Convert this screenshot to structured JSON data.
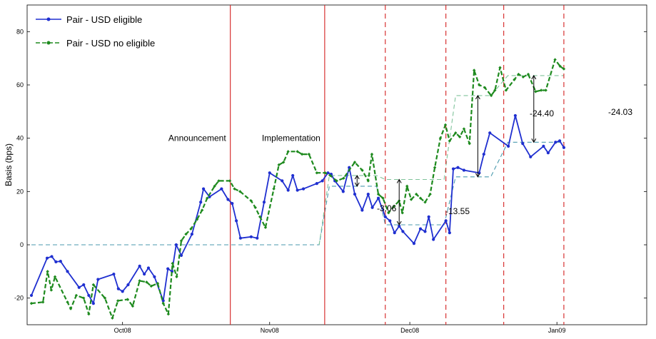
{
  "chart_data": {
    "type": "line",
    "ylabel": "Basis (bps)",
    "xlabel": "",
    "title": "",
    "ylim": [
      -30,
      90
    ],
    "xlim": [
      0,
      129
    ],
    "x_ticks": [
      {
        "x": 19.7,
        "label": "Oct08"
      },
      {
        "x": 51.5,
        "label": "Nov08"
      },
      {
        "x": 81.8,
        "label": "Dec08"
      },
      {
        "x": 113.6,
        "label": "Jan09"
      }
    ],
    "y_ticks": [
      -20,
      0,
      20,
      40,
      60,
      80
    ],
    "legend": {
      "position": "top-left",
      "entries": [
        {
          "name": "Pair - USD eligible",
          "color": "#1f2fd0",
          "style": "solid"
        },
        {
          "name": "Pair - USD no eligible",
          "color": "#1e8a1e",
          "style": "dashed"
        }
      ]
    },
    "series": [
      {
        "name": "Pair - USD eligible",
        "color": "#1f2fd0",
        "style": "solid",
        "points": [
          [
            0,
            -19
          ],
          [
            3.4,
            -5
          ],
          [
            4.4,
            -4.4
          ],
          [
            5.3,
            -6.4
          ],
          [
            6.3,
            -6.2
          ],
          [
            7.8,
            -10
          ],
          [
            10.3,
            -16
          ],
          [
            11.3,
            -15
          ],
          [
            12.4,
            -19
          ],
          [
            13.4,
            -22
          ],
          [
            14.4,
            -13
          ],
          [
            17.8,
            -11
          ],
          [
            18.8,
            -16.5
          ],
          [
            19.7,
            -17.5
          ],
          [
            20.9,
            -15
          ],
          [
            23.4,
            -8
          ],
          [
            24.4,
            -11
          ],
          [
            25.3,
            -8.7
          ],
          [
            26.6,
            -12
          ],
          [
            28.5,
            -21
          ],
          [
            29.5,
            -9
          ],
          [
            30.4,
            -10
          ],
          [
            31.3,
            0
          ],
          [
            32.4,
            -4
          ],
          [
            34.7,
            4
          ],
          [
            36.6,
            16
          ],
          [
            37.2,
            21
          ],
          [
            38.5,
            18
          ],
          [
            41.1,
            21
          ],
          [
            42.5,
            17
          ],
          [
            43.4,
            15.5
          ],
          [
            44.3,
            9
          ],
          [
            45.2,
            2.5
          ],
          [
            47.5,
            3
          ],
          [
            48.8,
            2.5
          ],
          [
            50.3,
            16
          ],
          [
            51.5,
            27
          ],
          [
            54.2,
            24
          ],
          [
            55.5,
            20.5
          ],
          [
            56.5,
            26
          ],
          [
            57.5,
            20.5
          ],
          [
            58.8,
            21
          ],
          [
            61.7,
            23
          ],
          [
            62.9,
            24
          ],
          [
            64.1,
            27
          ],
          [
            64.8,
            26.5
          ],
          [
            65.6,
            24
          ],
          [
            67.4,
            20
          ],
          [
            68.7,
            29
          ],
          [
            69.9,
            19
          ],
          [
            71.5,
            13
          ],
          [
            72.8,
            19
          ],
          [
            73.7,
            14
          ],
          [
            75,
            17.5
          ],
          [
            76.5,
            10.5
          ],
          [
            77.5,
            9
          ],
          [
            78.5,
            4.5
          ],
          [
            79.5,
            7
          ],
          [
            80.3,
            5
          ],
          [
            82.7,
            0.5
          ],
          [
            84.1,
            6
          ],
          [
            85.1,
            5
          ],
          [
            85.9,
            10.5
          ],
          [
            86.9,
            2
          ],
          [
            89.6,
            9
          ],
          [
            90.4,
            4.5
          ],
          [
            91.2,
            28.5
          ],
          [
            92.2,
            29
          ],
          [
            93.5,
            28
          ],
          [
            96.8,
            27
          ],
          [
            97.8,
            34
          ],
          [
            99.1,
            42
          ],
          [
            103.1,
            37
          ],
          [
            104.6,
            48.5
          ],
          [
            106.2,
            38
          ],
          [
            107.9,
            33
          ],
          [
            110.7,
            37
          ],
          [
            111.7,
            34.5
          ],
          [
            113.3,
            38.5
          ],
          [
            114.2,
            39
          ],
          [
            115.1,
            36.5
          ]
        ]
      },
      {
        "name": "Pair - USD no eligible",
        "color": "#1e8a1e",
        "style": "dashed",
        "points": [
          [
            0,
            -22
          ],
          [
            2.5,
            -21.5
          ],
          [
            3.5,
            -10
          ],
          [
            4.3,
            -17
          ],
          [
            5.1,
            -12
          ],
          [
            7.8,
            -21.5
          ],
          [
            8.5,
            -24
          ],
          [
            9.7,
            -19
          ],
          [
            11.3,
            -20
          ],
          [
            12.4,
            -26
          ],
          [
            13.4,
            -15
          ],
          [
            15.9,
            -20
          ],
          [
            17.5,
            -27.5
          ],
          [
            18.7,
            -21
          ],
          [
            20.8,
            -20.5
          ],
          [
            21.9,
            -23
          ],
          [
            23.4,
            -13.5
          ],
          [
            24.9,
            -14
          ],
          [
            25.9,
            -15.5
          ],
          [
            27.3,
            -14.5
          ],
          [
            28.5,
            -22
          ],
          [
            29.6,
            -26
          ],
          [
            30.5,
            -7
          ],
          [
            31.4,
            -12
          ],
          [
            32.4,
            1.5
          ],
          [
            33.4,
            4
          ],
          [
            34.5,
            6
          ],
          [
            35.8,
            9.5
          ],
          [
            36.9,
            13
          ],
          [
            38,
            17.5
          ],
          [
            39.6,
            22
          ],
          [
            40.5,
            24
          ],
          [
            42.9,
            24
          ],
          [
            43.9,
            21
          ],
          [
            45.1,
            20
          ],
          [
            47.5,
            16.5
          ],
          [
            48.4,
            14
          ],
          [
            49.4,
            10.5
          ],
          [
            50.6,
            6.5
          ],
          [
            52.4,
            21
          ],
          [
            53.5,
            30
          ],
          [
            54.5,
            31
          ],
          [
            55.5,
            35
          ],
          [
            57.5,
            35
          ],
          [
            58.5,
            34
          ],
          [
            60,
            34
          ],
          [
            61.7,
            27
          ],
          [
            63.5,
            27
          ],
          [
            64.6,
            26
          ],
          [
            66,
            24
          ],
          [
            67.5,
            25
          ],
          [
            69.9,
            31
          ],
          [
            71.5,
            28
          ],
          [
            72.8,
            24
          ],
          [
            73.6,
            34
          ],
          [
            75,
            19
          ],
          [
            76,
            17.5
          ],
          [
            77.2,
            12
          ],
          [
            78.4,
            14.5
          ],
          [
            79.5,
            16.5
          ],
          [
            80.2,
            12
          ],
          [
            81.2,
            22
          ],
          [
            82.1,
            17
          ],
          [
            83.2,
            19
          ],
          [
            84.1,
            17.5
          ],
          [
            85.1,
            16
          ],
          [
            86.2,
            19
          ],
          [
            87.2,
            29
          ],
          [
            88.4,
            40
          ],
          [
            89.5,
            45
          ],
          [
            90.4,
            39
          ],
          [
            91.7,
            42
          ],
          [
            92.6,
            40.5
          ],
          [
            93.5,
            43.5
          ],
          [
            94.7,
            38
          ],
          [
            95.7,
            65.5
          ],
          [
            96.8,
            60
          ],
          [
            98,
            59
          ],
          [
            99.4,
            56
          ],
          [
            100.2,
            58
          ],
          [
            101.3,
            66.5
          ],
          [
            102.6,
            58
          ],
          [
            104.4,
            62
          ],
          [
            105.3,
            64
          ],
          [
            106.3,
            63
          ],
          [
            107.4,
            64
          ],
          [
            109,
            57.5
          ],
          [
            110.2,
            58
          ],
          [
            111.2,
            58
          ],
          [
            113.2,
            69.5
          ],
          [
            114.3,
            67
          ],
          [
            115.1,
            66
          ]
        ]
      }
    ],
    "baselines": [
      {
        "color": "#4a9aae",
        "points": [
          [
            0,
            0
          ],
          [
            62.2,
            0
          ],
          [
            64.4,
            22
          ],
          [
            74.6,
            22
          ],
          [
            76.5,
            7.5
          ],
          [
            89.2,
            7.5
          ],
          [
            91.7,
            25.5
          ],
          [
            99.3,
            25.5
          ],
          [
            103,
            38.5
          ],
          [
            115.1,
            38.5
          ]
        ]
      },
      {
        "color": "#7fc39a",
        "points": [
          [
            62.2,
            0
          ],
          [
            64.4,
            26
          ],
          [
            74.6,
            26
          ],
          [
            76.5,
            24.5
          ],
          [
            89.2,
            24.5
          ],
          [
            91.7,
            56
          ],
          [
            99.3,
            56
          ],
          [
            103,
            63.5
          ],
          [
            115.1,
            63.5
          ]
        ]
      }
    ],
    "event_lines": [
      {
        "x": 43,
        "style": "solid",
        "label": "Announcement"
      },
      {
        "x": 63.4,
        "style": "solid",
        "label": "Implementation"
      },
      {
        "x": 76.5,
        "style": "dashed",
        "label": ""
      },
      {
        "x": 89.6,
        "style": "dashed",
        "label": ""
      },
      {
        "x": 102.1,
        "style": "dashed",
        "label": ""
      },
      {
        "x": 115.1,
        "style": "dashed",
        "label": ""
      }
    ],
    "gap_annotations": [
      {
        "x": 70.4,
        "y_top": 26,
        "y_bottom": 22,
        "label": "-3.06"
      },
      {
        "x": 79.5,
        "y_top": 24.5,
        "y_bottom": 7.5,
        "label": "-13.55"
      },
      {
        "x": 96.5,
        "y_top": 56,
        "y_bottom": 25.5,
        "label": "-24.40"
      },
      {
        "x": 108.6,
        "y_top": 63.5,
        "y_bottom": 38.5,
        "label": "-24.03"
      }
    ],
    "event_label_y": 40
  }
}
